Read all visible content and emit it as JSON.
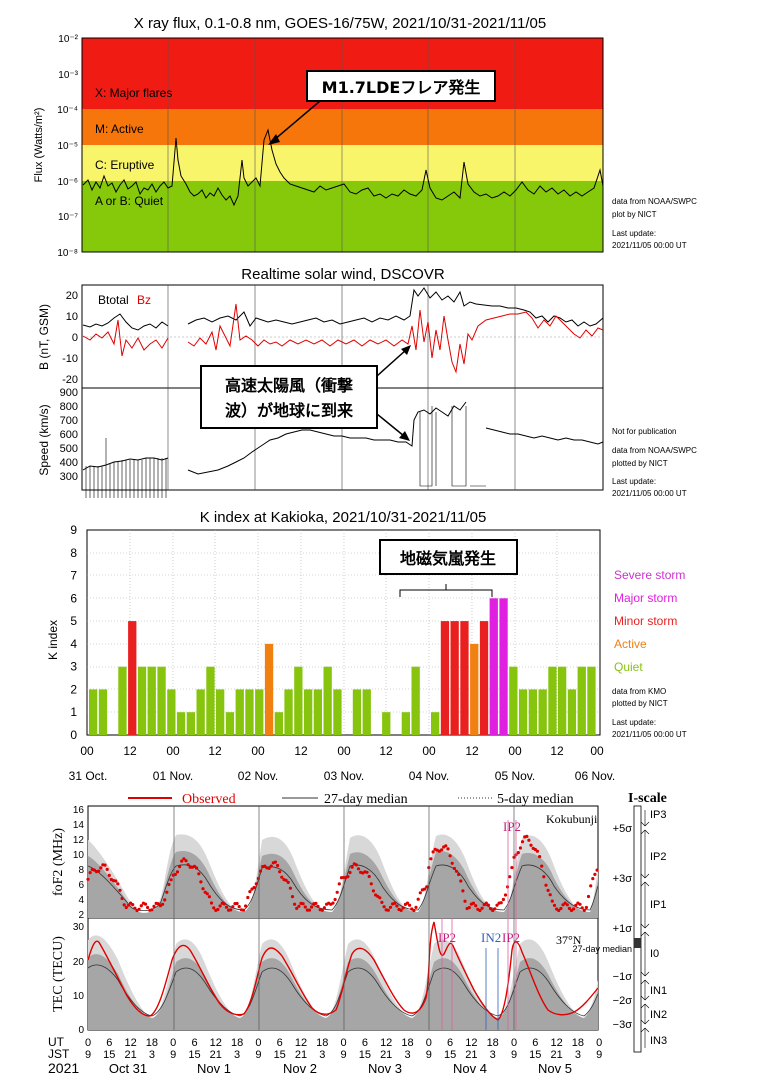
{
  "xray": {
    "title": "X ray flux, 0.1-0.8 nm, GOES-16/75W, 2021/10/31-2021/11/05",
    "ylabel": "Flux (Watts/m²)",
    "yticks": [
      "10⁻²",
      "10⁻³",
      "10⁻⁴",
      "10⁻⁵",
      "10⁻⁶",
      "10⁻⁷",
      "10⁻⁸"
    ],
    "bands": [
      {
        "label": "X: Major flares",
        "color": "#f01c14"
      },
      {
        "label": "M: Active",
        "color": "#f7760c"
      },
      {
        "label": "C: Eruptive",
        "color": "#f8f56a"
      },
      {
        "label": "A or B: Quiet",
        "color": "#86c90a"
      }
    ],
    "callout": "M1.7LDEフレア発生",
    "note1": "data from NOAA/SWPC",
    "note2": "plot by NICT",
    "note3": "Last update:",
    "note4": "2021/11/05 00:00 UT"
  },
  "wind": {
    "title": "Realtime solar wind, DSCOVR",
    "b_label": "B (nT, GSM)",
    "speed_label": "Speed (km/s)",
    "btotal": "Btotal",
    "bz": "Bz",
    "b_ticks": [
      "20",
      "10",
      "0",
      "-10",
      "-20"
    ],
    "v_ticks": [
      "900",
      "800",
      "700",
      "600",
      "500",
      "400",
      "300"
    ],
    "callout_line1": "高速太陽風（衝撃",
    "callout_line2": "波）が地球に到来",
    "note0": "Not for publication",
    "note1": "data from NOAA/SWPC",
    "note2": "plotted by NICT",
    "note3": "Last update:",
    "note4": "2021/11/05 00:00 UT"
  },
  "kindex": {
    "title": "K index at Kakioka, 2021/10/31-2021/11/05",
    "ylabel": "K index",
    "callout": "地磁気嵐発生",
    "legend": [
      {
        "label": "Severe storm",
        "color": "#cc33cc"
      },
      {
        "label": "Major storm",
        "color": "#e020e0"
      },
      {
        "label": "Minor storm",
        "color": "#e82020"
      },
      {
        "label": "Active",
        "color": "#f08010"
      },
      {
        "label": "Quiet",
        "color": "#86c40e"
      }
    ],
    "xticks": [
      "00",
      "12",
      "00",
      "12",
      "00",
      "12",
      "00",
      "12",
      "00",
      "12",
      "00",
      "12",
      "00"
    ],
    "dates": [
      "31 Oct.",
      "01 Nov.",
      "02 Nov.",
      "03 Nov.",
      "04 Nov.",
      "05 Nov.",
      "06 Nov."
    ],
    "note1": "data from KMO",
    "note2": "plotted by NICT",
    "note3": "Last update:",
    "note4": "2021/11/05 00:00 UT"
  },
  "chart_data": [
    {
      "type": "bar",
      "title": "K index at Kakioka, 2021/10/31-2021/11/05",
      "ylabel": "K index",
      "ylim": [
        0,
        9
      ],
      "x_start": "2021-10-31 00:00 UT",
      "interval_hours": 3,
      "values": [
        2,
        2,
        0,
        3,
        5,
        3,
        3,
        3,
        2,
        1,
        1,
        2,
        3,
        2,
        1,
        2,
        2,
        2,
        4,
        1,
        2,
        3,
        2,
        2,
        3,
        2,
        0,
        2,
        2,
        0,
        1,
        0,
        1,
        3,
        0,
        1,
        5,
        5,
        5,
        4,
        5,
        6,
        6,
        3,
        2,
        2,
        2,
        3,
        3,
        2,
        3,
        3
      ]
    }
  ],
  "tec": {
    "legend_observed": "Observed",
    "legend_27": "27-day median",
    "legend_5": "5-day median",
    "iscale_title": "I-scale",
    "station": "Kokubunji",
    "lat": "37°N",
    "fof2_label": "foF2 (MHz)",
    "tec_label": "TEC (TECU)",
    "fof2_ticks": [
      "16",
      "14",
      "12",
      "10",
      "8",
      "6",
      "4",
      "2"
    ],
    "tec_ticks": [
      "30",
      "20",
      "10",
      "0"
    ],
    "ut": "UT",
    "jst": "JST",
    "year": "2021",
    "ut_ticks": [
      "0",
      "6",
      "12",
      "18"
    ],
    "jst_ticks": [
      "9",
      "15",
      "21",
      "3"
    ],
    "days": [
      "Oct 31",
      "Nov 1",
      "Nov 2",
      "Nov 3",
      "Nov 4",
      "Nov 5"
    ],
    "ip2": "IP2",
    "in2": "IN2",
    "sigma_labels": [
      "+5σ",
      "+3σ",
      "+1σ",
      "27-day median",
      "−1σ",
      "−2σ",
      "−3σ"
    ],
    "iscale_labels": [
      "IP3",
      "IP2",
      "IP1",
      "I0",
      "IN1",
      "IN2",
      "IN3"
    ]
  }
}
